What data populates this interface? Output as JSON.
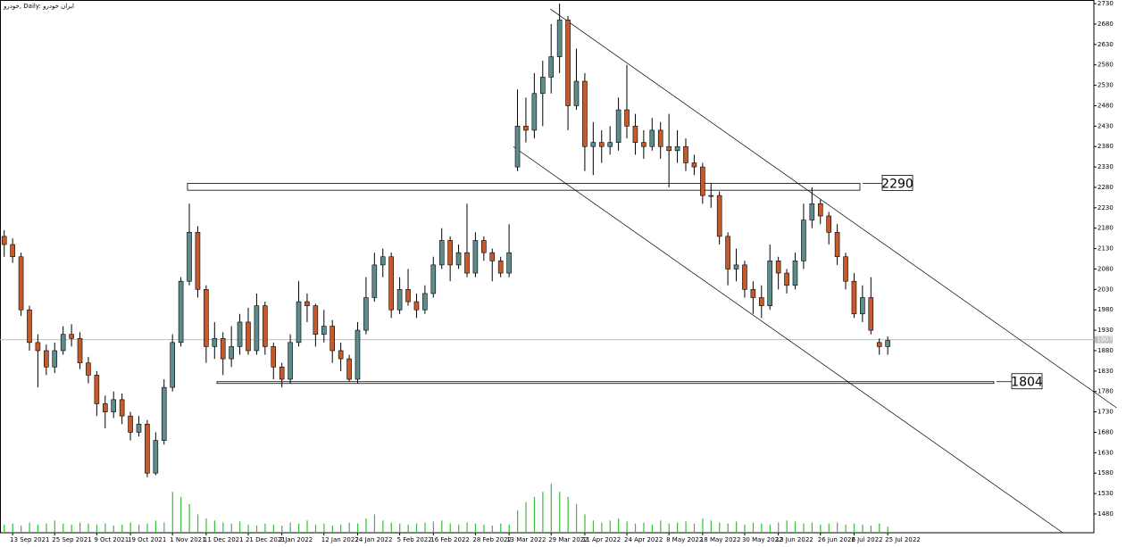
{
  "chart_data": {
    "type": "candlestick",
    "title": "خودرو, Daily: ایران خودرو",
    "categories": [
      null,
      "13 Sep 2021",
      null,
      null,
      null,
      null,
      "25 Sep 2021",
      null,
      null,
      null,
      null,
      "9 Oct 2021",
      null,
      null,
      null,
      "19 Oct 2021",
      null,
      null,
      null,
      null,
      "1 Nov 2021",
      null,
      null,
      null,
      "11 Dec 2021",
      null,
      null,
      null,
      null,
      "21 Dec 2021",
      null,
      null,
      null,
      "2 Jan 2022",
      null,
      null,
      null,
      null,
      "12 Jan 2022",
      null,
      null,
      null,
      "24 Jan 2022",
      null,
      null,
      null,
      null,
      "5 Feb 2022",
      null,
      null,
      null,
      "16 Feb 2022",
      null,
      null,
      null,
      null,
      "28 Feb 2022",
      null,
      null,
      null,
      "13 Mar 2022",
      null,
      null,
      null,
      null,
      "29 Mar 2022",
      null,
      null,
      null,
      "11 Apr 2022",
      null,
      null,
      null,
      null,
      "24 Apr 2022",
      null,
      null,
      null,
      null,
      "8 May 2022",
      null,
      null,
      null,
      "18 May 2022",
      null,
      null,
      null,
      null,
      "30 May 2022",
      null,
      null,
      null,
      "13 Jun 2022",
      null,
      null,
      null,
      null,
      "26 Jun 2022",
      null,
      null,
      null,
      "6 Jul 2022",
      null,
      null,
      null,
      "25 Jul 2022"
    ],
    "open": [
      2160,
      2140,
      2110,
      1980,
      1900,
      1880,
      1840,
      1880,
      1920,
      1910,
      1850,
      1820,
      1750,
      1730,
      1760,
      1720,
      1680,
      1700,
      1580,
      1660,
      1790,
      1900,
      2050,
      2170,
      2030,
      1890,
      1910,
      1860,
      1890,
      1950,
      1880,
      1990,
      1890,
      1840,
      1810,
      1900,
      2000,
      1990,
      1920,
      1940,
      1880,
      1860,
      1810,
      1930,
      2010,
      2090,
      2110,
      1980,
      2030,
      2000,
      1980,
      2020,
      2090,
      2150,
      2090,
      2120,
      2070,
      2150,
      2120,
      2100,
      2070,
      2330,
      2430,
      2420,
      2510,
      2550,
      2600,
      2690,
      2480,
      2540,
      2380,
      2390,
      2380,
      2390,
      2470,
      2430,
      2390,
      2380,
      2420,
      2380,
      2370,
      2380,
      2340,
      2330,
      2260,
      2260,
      2160,
      2080,
      2090,
      2030,
      2010,
      1990,
      2100,
      2070,
      2040,
      2100,
      2200,
      2240,
      2210,
      2170,
      2110,
      2050,
      1970,
      2010,
      1900,
      1890
    ],
    "high": [
      2175,
      2155,
      2120,
      1990,
      1920,
      1895,
      1900,
      1940,
      1945,
      1925,
      1865,
      1830,
      1770,
      1780,
      1775,
      1730,
      1720,
      1710,
      1680,
      1810,
      1920,
      2060,
      2240,
      2185,
      2040,
      1950,
      1925,
      1940,
      1970,
      1985,
      2020,
      2000,
      1900,
      1850,
      1920,
      2050,
      2020,
      1995,
      1980,
      1955,
      1900,
      1870,
      1950,
      2060,
      2120,
      2130,
      2120,
      2060,
      2080,
      2020,
      2040,
      2110,
      2180,
      2160,
      2140,
      2240,
      2170,
      2160,
      2130,
      2110,
      2190,
      2520,
      2500,
      2560,
      2590,
      2680,
      2730,
      2700,
      2620,
      2560,
      2440,
      2420,
      2430,
      2500,
      2580,
      2460,
      2420,
      2450,
      2440,
      2460,
      2420,
      2400,
      2360,
      2340,
      2290,
      2270,
      2170,
      2130,
      2100,
      2050,
      2040,
      2140,
      2110,
      2080,
      2120,
      2240,
      2280,
      2250,
      2220,
      2190,
      2120,
      2070,
      2040,
      2060,
      1910,
      1915
    ],
    "low": [
      2110,
      2095,
      1965,
      1880,
      1790,
      1820,
      1825,
      1870,
      1890,
      1835,
      1800,
      1720,
      1690,
      1715,
      1700,
      1660,
      1670,
      1570,
      1575,
      1650,
      1780,
      1890,
      2040,
      2010,
      1850,
      1860,
      1820,
      1840,
      1870,
      1870,
      1870,
      1870,
      1810,
      1790,
      1800,
      1890,
      1950,
      1890,
      1900,
      1850,
      1830,
      1805,
      1800,
      1920,
      2000,
      2060,
      1960,
      1970,
      1990,
      1960,
      1970,
      2010,
      2080,
      2050,
      2080,
      2060,
      2060,
      2100,
      2050,
      2060,
      2060,
      2320,
      2390,
      2400,
      2430,
      2510,
      2560,
      2420,
      2470,
      2320,
      2310,
      2340,
      2360,
      2370,
      2400,
      2360,
      2350,
      2370,
      2350,
      2280,
      2340,
      2320,
      2310,
      2240,
      2230,
      2140,
      2040,
      2050,
      2010,
      1970,
      1960,
      1980,
      2030,
      2020,
      2030,
      2080,
      2180,
      2190,
      2140,
      2090,
      2030,
      1960,
      1950,
      1920,
      1870,
      1870
    ],
    "close": [
      2140,
      2110,
      1980,
      1900,
      1880,
      1840,
      1880,
      1920,
      1910,
      1850,
      1820,
      1750,
      1730,
      1760,
      1720,
      1680,
      1700,
      1580,
      1660,
      1790,
      1900,
      2050,
      2170,
      2030,
      1890,
      1910,
      1860,
      1890,
      1950,
      1880,
      1990,
      1890,
      1840,
      1810,
      1900,
      2000,
      1990,
      1920,
      1940,
      1880,
      1860,
      1810,
      1930,
      2010,
      2090,
      2110,
      1980,
      2030,
      2000,
      1980,
      2020,
      2090,
      2150,
      2090,
      2120,
      2070,
      2150,
      2120,
      2100,
      2070,
      2120,
      2430,
      2420,
      2510,
      2550,
      2600,
      2690,
      2480,
      2540,
      2380,
      2390,
      2380,
      2390,
      2470,
      2430,
      2390,
      2380,
      2420,
      2380,
      2370,
      2380,
      2340,
      2330,
      2260,
      2260,
      2160,
      2080,
      2090,
      2030,
      2010,
      1990,
      2100,
      2070,
      2040,
      2100,
      2200,
      2240,
      2210,
      2170,
      2110,
      2050,
      1970,
      2010,
      1930,
      1890,
      1905
    ],
    "volume": [
      8,
      9,
      7,
      10,
      8,
      9,
      12,
      9,
      8,
      10,
      9,
      8,
      9,
      7,
      8,
      10,
      8,
      9,
      12,
      10,
      40,
      35,
      28,
      18,
      14,
      12,
      10,
      9,
      11,
      8,
      7,
      9,
      8,
      7,
      10,
      9,
      12,
      8,
      9,
      7,
      8,
      10,
      9,
      14,
      18,
      12,
      10,
      9,
      8,
      9,
      10,
      11,
      12,
      9,
      8,
      10,
      9,
      8,
      7,
      9,
      8,
      22,
      30,
      35,
      40,
      48,
      40,
      35,
      28,
      18,
      12,
      10,
      12,
      14,
      11,
      9,
      10,
      8,
      12,
      9,
      10,
      11,
      9,
      14,
      12,
      10,
      9,
      11,
      8,
      10,
      9,
      8,
      10,
      12,
      11,
      9,
      10,
      8,
      9,
      10,
      8,
      9,
      8,
      7,
      9,
      6
    ],
    "up_color": "#5e8c8c",
    "down_color": "#c75a2c",
    "volume_color": "#3dbb3d",
    "ylim": [
      1434,
      2739
    ],
    "yticks": [
      1480,
      1530,
      1580,
      1630,
      1680,
      1730,
      1780,
      1830,
      1880,
      1930,
      1980,
      2030,
      2080,
      2130,
      2180,
      2230,
      2280,
      2330,
      2380,
      2430,
      2480,
      2530,
      2580,
      2630,
      2680,
      2730
    ],
    "last_price": 1907,
    "levels": [
      {
        "value": 2290,
        "low": 2273
      },
      {
        "value": 1804,
        "low": 1801
      }
    ],
    "trendlines": [
      {
        "x": [
          64.9,
          132.2
        ],
        "y": [
          2717,
          1740
        ]
      },
      {
        "x": [
          60.5,
          125.8
        ],
        "y": [
          2380,
          1434
        ]
      }
    ]
  }
}
